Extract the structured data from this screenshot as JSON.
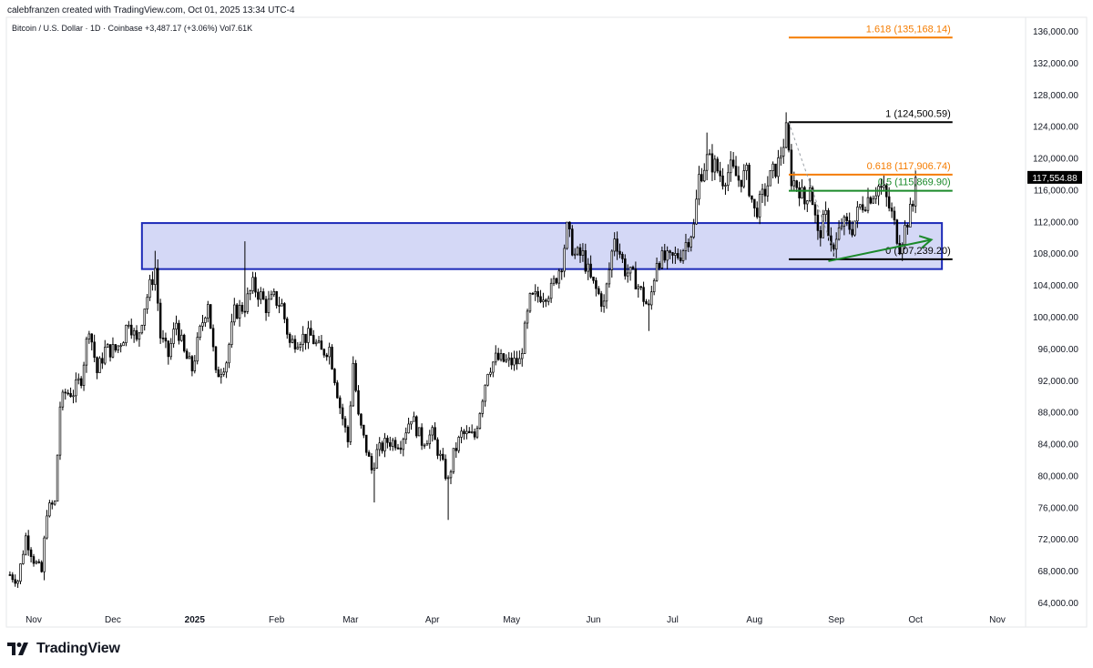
{
  "header": {
    "attribution": "calebfranzen created with TradingView.com, Oct 01, 2025 13:34 UTC-4"
  },
  "legend": {
    "symbol_line": "Bitcoin / U.S. Dollar · 1D · Coinbase  +3,487.17 (+3.06%)  Vol7.61K"
  },
  "footer": {
    "brand": "TradingView"
  },
  "colors": {
    "up": "#ffffff",
    "down": "#000000",
    "wick": "#000000",
    "zone_fill": "#cfd4f5",
    "zone_stroke": "#1d2bb8",
    "fib_black": "#000000",
    "fib_orange": "#f57c00",
    "fib_green": "#1b8a2a",
    "arrow": "#1b8a2a",
    "axis_text": "#131722"
  },
  "chart_data": {
    "type": "candlestick",
    "title": "Bitcoin / U.S. Dollar",
    "interval": "1D",
    "exchange": "Coinbase",
    "change": "+3,487.17 (+3.06%)",
    "volume": "Vol7.61K",
    "last_price_label": "117,554.88",
    "ylim": [
      62000,
      138000
    ],
    "y_ticks": [
      {
        "value": 136000,
        "label": "136,000.00"
      },
      {
        "value": 132000,
        "label": "132,000.00"
      },
      {
        "value": 128000,
        "label": "128,000.00"
      },
      {
        "value": 124000,
        "label": "124,000.00"
      },
      {
        "value": 120000,
        "label": "120,000.00"
      },
      {
        "value": 116000,
        "label": "116,000.00"
      },
      {
        "value": 112000,
        "label": "112,000.00"
      },
      {
        "value": 108000,
        "label": "108,000.00"
      },
      {
        "value": 104000,
        "label": "104,000.00"
      },
      {
        "value": 100000,
        "label": "100,000.00"
      },
      {
        "value": 96000,
        "label": "96,000.00"
      },
      {
        "value": 92000,
        "label": "92,000.00"
      },
      {
        "value": 88000,
        "label": "88,000.00"
      },
      {
        "value": 84000,
        "label": "84,000.00"
      },
      {
        "value": 80000,
        "label": "80,000.00"
      },
      {
        "value": 76000,
        "label": "76,000.00"
      },
      {
        "value": 72000,
        "label": "72,000.00"
      },
      {
        "value": 68000,
        "label": "68,000.00"
      },
      {
        "value": 64000,
        "label": "64,000.00"
      }
    ],
    "x_ticks": [
      {
        "date": "2024-11-01",
        "label": "Nov",
        "bold": false
      },
      {
        "date": "2024-12-01",
        "label": "Dec",
        "bold": false
      },
      {
        "date": "2025-01-01",
        "label": "2025",
        "bold": true
      },
      {
        "date": "2025-02-01",
        "label": "Feb",
        "bold": false
      },
      {
        "date": "2025-03-01",
        "label": "Mar",
        "bold": false
      },
      {
        "date": "2025-04-01",
        "label": "Apr",
        "bold": false
      },
      {
        "date": "2025-05-01",
        "label": "May",
        "bold": false
      },
      {
        "date": "2025-06-01",
        "label": "Jun",
        "bold": false
      },
      {
        "date": "2025-07-01",
        "label": "Jul",
        "bold": false
      },
      {
        "date": "2025-08-01",
        "label": "Aug",
        "bold": false
      },
      {
        "date": "2025-09-01",
        "label": "Sep",
        "bold": false
      },
      {
        "date": "2025-10-01",
        "label": "Oct",
        "bold": false
      },
      {
        "date": "2025-11-01",
        "label": "Nov",
        "bold": false
      }
    ],
    "close_path": [
      [
        "2024-10-23",
        67500
      ],
      [
        "2024-10-26",
        66800
      ],
      [
        "2024-10-29",
        72300
      ],
      [
        "2024-11-01",
        69400
      ],
      [
        "2024-11-04",
        67800
      ],
      [
        "2024-11-06",
        75600
      ],
      [
        "2024-11-09",
        76500
      ],
      [
        "2024-11-11",
        88800
      ],
      [
        "2024-11-13",
        90400
      ],
      [
        "2024-11-16",
        90500
      ],
      [
        "2024-11-19",
        92300
      ],
      [
        "2024-11-22",
        98900
      ],
      [
        "2024-11-25",
        93000
      ],
      [
        "2024-11-28",
        95800
      ],
      [
        "2024-12-02",
        95800
      ],
      [
        "2024-12-05",
        97500
      ],
      [
        "2024-12-07",
        99800
      ],
      [
        "2024-12-10",
        96700
      ],
      [
        "2024-12-13",
        101400
      ],
      [
        "2024-12-17",
        106100
      ],
      [
        "2024-12-19",
        97500
      ],
      [
        "2024-12-22",
        95100
      ],
      [
        "2024-12-25",
        99300
      ],
      [
        "2024-12-28",
        95300
      ],
      [
        "2024-12-31",
        93400
      ],
      [
        "2025-01-03",
        98100
      ],
      [
        "2025-01-06",
        102100
      ],
      [
        "2025-01-09",
        92500
      ],
      [
        "2025-01-13",
        94500
      ],
      [
        "2025-01-16",
        100500
      ],
      [
        "2025-01-20",
        101400
      ],
      [
        "2025-01-23",
        103900
      ],
      [
        "2025-01-26",
        102600
      ],
      [
        "2025-01-28",
        101300
      ],
      [
        "2025-01-31",
        102300
      ],
      [
        "2025-02-03",
        101400
      ],
      [
        "2025-02-06",
        96600
      ],
      [
        "2025-02-10",
        97400
      ],
      [
        "2025-02-14",
        97500
      ],
      [
        "2025-02-18",
        95500
      ],
      [
        "2025-02-21",
        96100
      ],
      [
        "2025-02-25",
        88700
      ],
      [
        "2025-02-28",
        84300
      ],
      [
        "2025-03-02",
        94200
      ],
      [
        "2025-03-04",
        87200
      ],
      [
        "2025-03-09",
        80700
      ],
      [
        "2025-03-11",
        82900
      ],
      [
        "2025-03-15",
        84300
      ],
      [
        "2025-03-20",
        84200
      ],
      [
        "2025-03-24",
        87500
      ],
      [
        "2025-03-28",
        84300
      ],
      [
        "2025-04-01",
        85200
      ],
      [
        "2025-04-03",
        83200
      ],
      [
        "2025-04-07",
        79200
      ],
      [
        "2025-04-09",
        82600
      ],
      [
        "2025-04-12",
        85200
      ],
      [
        "2025-04-17",
        84900
      ],
      [
        "2025-04-22",
        93400
      ],
      [
        "2025-04-25",
        94700
      ],
      [
        "2025-04-30",
        94200
      ],
      [
        "2025-05-04",
        94300
      ],
      [
        "2025-05-08",
        102000
      ],
      [
        "2025-05-12",
        102800
      ],
      [
        "2025-05-16",
        103300
      ],
      [
        "2025-05-20",
        106900
      ],
      [
        "2025-05-22",
        111000
      ],
      [
        "2025-05-25",
        107700
      ],
      [
        "2025-05-28",
        107700
      ],
      [
        "2025-05-31",
        104600
      ],
      [
        "2025-06-05",
        101500
      ],
      [
        "2025-06-09",
        110300
      ],
      [
        "2025-06-13",
        105900
      ],
      [
        "2025-06-17",
        104600
      ],
      [
        "2025-06-22",
        100900
      ],
      [
        "2025-06-25",
        107300
      ],
      [
        "2025-06-30",
        107100
      ],
      [
        "2025-07-04",
        108000
      ],
      [
        "2025-07-09",
        111300
      ],
      [
        "2025-07-11",
        117600
      ],
      [
        "2025-07-14",
        119800
      ],
      [
        "2025-07-17",
        119000
      ],
      [
        "2025-07-20",
        117400
      ],
      [
        "2025-07-23",
        118600
      ],
      [
        "2025-07-26",
        117300
      ],
      [
        "2025-07-29",
        117900
      ],
      [
        "2025-08-01",
        113200
      ],
      [
        "2025-08-03",
        114200
      ],
      [
        "2025-08-07",
        117500
      ],
      [
        "2025-08-10",
        119300
      ],
      [
        "2025-08-13",
        123300
      ],
      [
        "2025-08-15",
        117400
      ],
      [
        "2025-08-18",
        116200
      ],
      [
        "2025-08-20",
        114300
      ],
      [
        "2025-08-22",
        116900
      ],
      [
        "2025-08-25",
        110100
      ],
      [
        "2025-08-28",
        112500
      ],
      [
        "2025-08-31",
        108200
      ],
      [
        "2025-09-03",
        111700
      ],
      [
        "2025-09-07",
        111200
      ],
      [
        "2025-09-10",
        113900
      ],
      [
        "2025-09-14",
        115300
      ],
      [
        "2025-09-17",
        116400
      ],
      [
        "2025-09-19",
        115700
      ],
      [
        "2025-09-22",
        112800
      ],
      [
        "2025-09-25",
        109000
      ],
      [
        "2025-09-28",
        112200
      ],
      [
        "2025-09-30",
        114000
      ],
      [
        "2025-10-01",
        117554.88
      ]
    ],
    "notable_lows": [
      {
        "date": "2024-11-05",
        "low": 66800
      },
      {
        "date": "2025-03-10",
        "low": 76600
      },
      {
        "date": "2025-04-07",
        "low": 74400
      },
      {
        "date": "2025-06-22",
        "low": 98200
      },
      {
        "date": "2025-09-01",
        "low": 107300
      }
    ],
    "notable_highs": [
      {
        "date": "2024-12-17",
        "high": 108300
      },
      {
        "date": "2025-01-20",
        "high": 109500
      },
      {
        "date": "2025-05-22",
        "high": 111900
      },
      {
        "date": "2025-07-14",
        "high": 123200
      },
      {
        "date": "2025-08-14",
        "high": 124500
      }
    ],
    "fib_levels": [
      {
        "ratio": "1",
        "value": 124500.59,
        "label": "1 (124,500.59)",
        "color": "black"
      },
      {
        "ratio": "0.618",
        "value": 117906.74,
        "label": "0.618 (117,906.74)",
        "color": "orange"
      },
      {
        "ratio": "0.5",
        "value": 115869.9,
        "label": "0.5 (115,869.90)",
        "color": "green"
      },
      {
        "ratio": "0",
        "value": 107239.2,
        "label": "0 (107,239.20)",
        "color": "black"
      },
      {
        "ratio": "1.618",
        "value": 135168.14,
        "label": "1.618 (135,168.14)",
        "color": "orange"
      }
    ],
    "fib_anchor": {
      "start_date": "2025-08-14",
      "end_date": "2025-09-01"
    },
    "fib_extension_range": {
      "start_date": "2025-08-14",
      "end_date": "2025-10-15"
    },
    "zone": {
      "start_date": "2024-12-12",
      "end_date": "2025-10-11",
      "top": 111800,
      "bottom": 106000
    },
    "trend_arrow": {
      "from": [
        "2025-08-29",
        107000
      ],
      "to": [
        "2025-10-07",
        109700
      ]
    }
  }
}
